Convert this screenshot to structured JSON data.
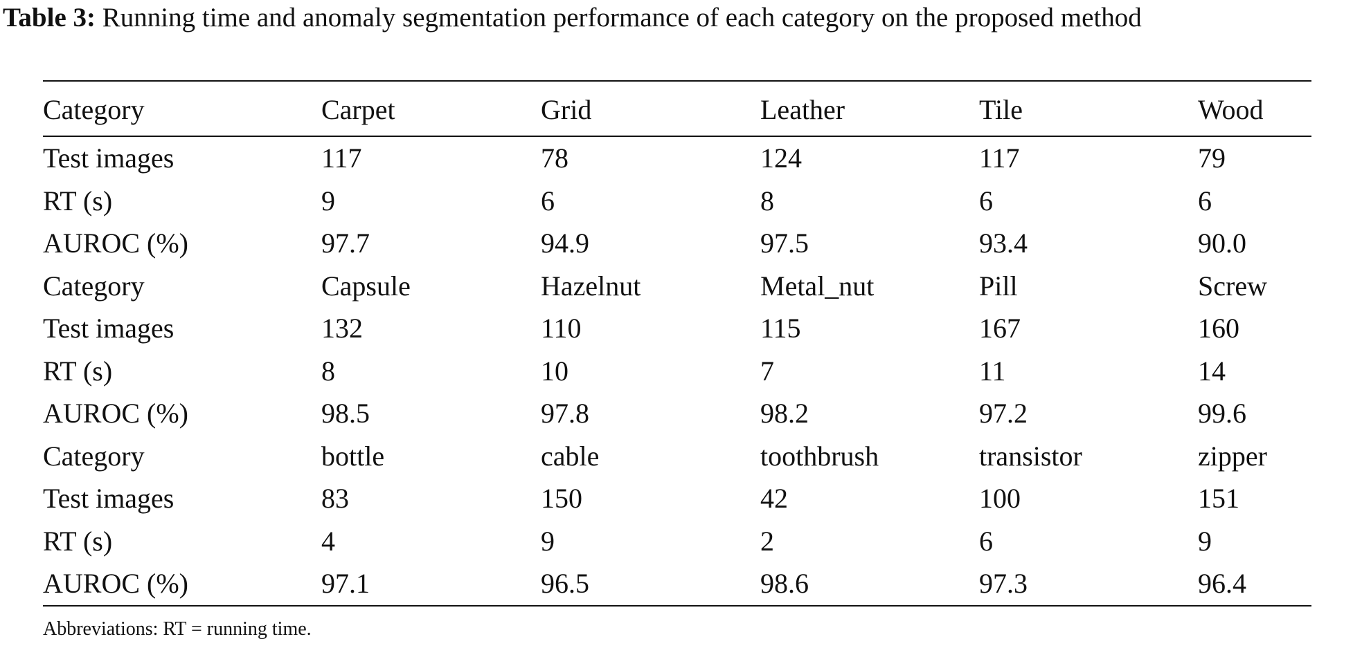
{
  "caption": {
    "label": "Table 3:",
    "text": " Running time and anomaly segmentation performance of each category on the proposed method"
  },
  "table": {
    "header": [
      "Category",
      "Carpet",
      "Grid",
      "Leather",
      "Tile",
      "Wood"
    ],
    "rows": [
      [
        "Test images",
        "117",
        "78",
        "124",
        "117",
        "79"
      ],
      [
        "RT (s)",
        "9",
        "6",
        "8",
        "6",
        "6"
      ],
      [
        "AUROC (%)",
        "97.7",
        "94.9",
        "97.5",
        "93.4",
        "90.0"
      ],
      [
        "Category",
        "Capsule",
        "Hazelnut",
        "Metal_nut",
        "Pill",
        "Screw"
      ],
      [
        "Test images",
        "132",
        "110",
        "115",
        "167",
        "160"
      ],
      [
        "RT (s)",
        "8",
        "10",
        "7",
        "11",
        "14"
      ],
      [
        "AUROC (%)",
        "98.5",
        "97.8",
        "98.2",
        "97.2",
        "99.6"
      ],
      [
        "Category",
        "bottle",
        "cable",
        "toothbrush",
        "transistor",
        "zipper"
      ],
      [
        "Test images",
        "83",
        "150",
        "42",
        "100",
        "151"
      ],
      [
        "RT (s)",
        "4",
        "9",
        "2",
        "6",
        "9"
      ],
      [
        "AUROC (%)",
        "97.1",
        "96.5",
        "98.6",
        "97.3",
        "96.4"
      ]
    ]
  },
  "note": "Abbreviations: RT = running time."
}
